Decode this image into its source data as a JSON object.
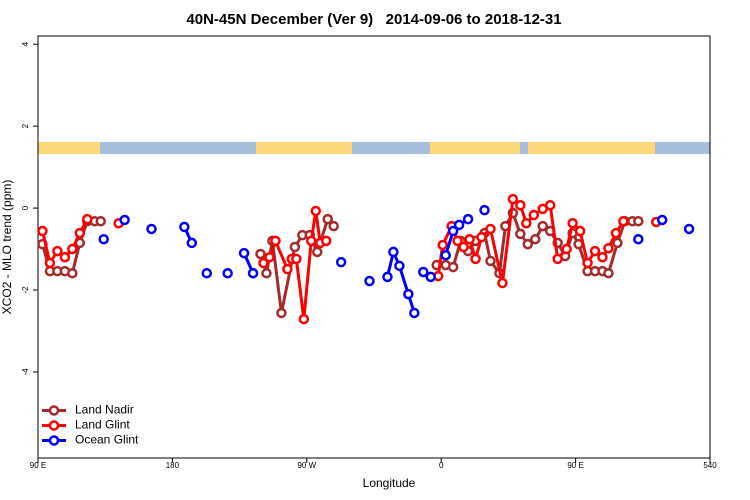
{
  "chart_data": {
    "type": "line",
    "title": "40N-45N December (Ver 9)   2014-09-06 to 2018-12-31",
    "xlabel": "Longitude",
    "ylabel": "XCO2 - MLO trend (ppm)",
    "xlim": [
      90,
      540
    ],
    "ylim": [
      -6.1,
      4.2
    ],
    "xticks": [
      {
        "value": 90,
        "label": "90 E"
      },
      180,
      {
        "value": 270,
        "label": "90 W"
      },
      {
        "value": 360,
        "label": "0"
      },
      {
        "value": 450,
        "label": "90 E"
      },
      540
    ],
    "yticks": [
      4,
      2,
      0,
      -2,
      -4
    ],
    "legend": "bottomleft",
    "series": [
      {
        "name": "Land Nadir",
        "color": "#a52a2a",
        "x": [
          93,
          98,
          103,
          108,
          113,
          118,
          123,
          128,
          132,
          null,
          239,
          243,
          247,
          253,
          262,
          267,
          272,
          277,
          284,
          288,
          null,
          357,
          363,
          368,
          373,
          378,
          383,
          389,
          393,
          399,
          403,
          408,
          413,
          418,
          423,
          428,
          433,
          438,
          443,
          448,
          452,
          458,
          463,
          468,
          472,
          478,
          483,
          488,
          492
        ],
        "values": [
          -0.88,
          -1.54,
          -1.54,
          -1.54,
          -1.59,
          -0.85,
          -0.32,
          -0.32,
          -0.32,
          null,
          -1.12,
          -1.59,
          -0.8,
          -2.56,
          -0.95,
          -0.66,
          -0.66,
          -1.07,
          -0.27,
          -0.44,
          null,
          -1.39,
          -1.39,
          -1.44,
          -0.8,
          -1.05,
          -0.8,
          -0.61,
          -1.29,
          -1.59,
          -0.44,
          -0.12,
          -0.63,
          -0.88,
          -0.76,
          -0.44,
          -0.56,
          -0.85,
          -1.17,
          -0.61,
          -0.88,
          -1.54,
          -1.54,
          -1.54,
          -1.59,
          -0.85,
          -0.32,
          -0.32,
          -0.32
        ]
      },
      {
        "name": "Land Glint",
        "color": "#ff0000",
        "x": [
          93,
          98,
          103,
          108,
          113,
          118,
          123,
          null,
          144,
          null,
          241,
          245,
          249,
          257,
          260,
          263,
          268,
          273,
          276,
          279,
          283,
          null,
          358,
          361,
          367,
          371,
          375,
          379,
          383,
          387,
          393,
          401,
          408,
          413,
          417,
          422,
          428,
          433,
          438,
          444,
          448,
          453,
          458,
          463,
          468,
          472,
          477,
          482,
          null,
          504
        ],
        "values": [
          -0.56,
          -1.34,
          -1.05,
          -1.2,
          -1.0,
          -0.61,
          -0.27,
          null,
          -0.37,
          null,
          -1.34,
          -1.2,
          -0.8,
          -1.49,
          -1.24,
          -1.24,
          -2.71,
          -0.8,
          -0.07,
          -0.85,
          -0.8,
          null,
          -1.66,
          -0.9,
          -0.44,
          -0.8,
          -0.95,
          -0.76,
          -1.24,
          -0.71,
          -0.51,
          -1.83,
          0.22,
          0.07,
          -0.37,
          -0.17,
          -0.02,
          0.07,
          -1.24,
          -1.0,
          -0.37,
          -0.56,
          -1.34,
          -1.05,
          -1.2,
          -0.98,
          -0.61,
          -0.32,
          null,
          -0.34
        ]
      },
      {
        "name": "Ocean Glint",
        "color": "#0000ff",
        "x": [
          134,
          null,
          148,
          null,
          166,
          null,
          188,
          193,
          null,
          203,
          null,
          217,
          null,
          228,
          234,
          null,
          293,
          null,
          312,
          null,
          324,
          328,
          332,
          338,
          342,
          null,
          348,
          353,
          null,
          363,
          368,
          372,
          378,
          null,
          389,
          null,
          492,
          null,
          508,
          null,
          526
        ],
        "values": [
          -0.76,
          null,
          -0.29,
          null,
          -0.51,
          null,
          -0.46,
          -0.85,
          null,
          -1.59,
          null,
          -1.59,
          null,
          -1.1,
          -1.59,
          null,
          -1.32,
          null,
          -1.78,
          null,
          -1.68,
          -1.07,
          -1.41,
          -2.1,
          -2.56,
          null,
          -1.56,
          -1.68,
          null,
          -1.15,
          -0.56,
          -0.41,
          -0.27,
          null,
          -0.05,
          null,
          -0.76,
          null,
          -0.29,
          null,
          -0.51
        ]
      }
    ]
  }
}
